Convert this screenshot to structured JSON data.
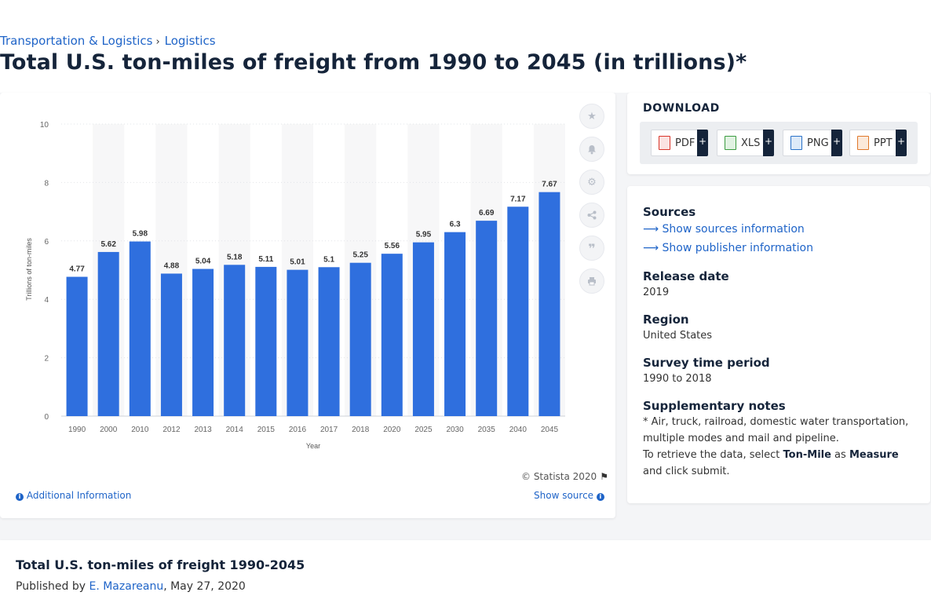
{
  "breadcrumb": {
    "items": [
      "Transportation & Logistics",
      "Logistics"
    ],
    "separator": "›"
  },
  "page_title": "Total U.S. ton-miles of freight from 1990 to 2045 (in trillions)*",
  "chart_tools": {
    "icons": [
      "star-icon",
      "bell-icon",
      "gear-icon",
      "share-icon",
      "quote-icon",
      "print-icon"
    ]
  },
  "chart_footer": {
    "copyright": "© Statista 2020",
    "additional_info": "Additional Information",
    "show_source": "Show source"
  },
  "download": {
    "title": "DOWNLOAD",
    "buttons": [
      {
        "label": "PDF",
        "color": "#d9352a"
      },
      {
        "label": "XLS",
        "color": "#3a9b3f"
      },
      {
        "label": "PNG",
        "color": "#2a72c8"
      },
      {
        "label": "PPT",
        "color": "#e0782a"
      }
    ]
  },
  "info": {
    "sources_heading": "Sources",
    "show_sources": "Show sources information",
    "show_publisher": "Show publisher information",
    "release_date_heading": "Release date",
    "release_date": "2019",
    "region_heading": "Region",
    "region": "United States",
    "survey_heading": "Survey time period",
    "survey_period": "1990 to 2018",
    "notes_heading": "Supplementary notes",
    "notes_line1": "* Air, truck, railroad, domestic water transportation, multiple modes and mail and pipeline.",
    "notes_line2_pre": "To retrieve the data, select ",
    "notes_bold1": "Ton-Mile",
    "notes_mid": " as ",
    "notes_bold2": "Measure",
    "notes_post": " and click submit."
  },
  "bottom": {
    "title": "Total U.S. ton-miles of freight 1990-2045",
    "published_prefix": "Published by ",
    "author": "E. Mazareanu",
    "date": ", May 27, 2020"
  },
  "colors": {
    "bar": "#2f6fde",
    "brand_dark": "#15243a",
    "link": "#1f64c8"
  },
  "chart_data": {
    "type": "bar",
    "categories": [
      "1990",
      "2000",
      "2010",
      "2012",
      "2013",
      "2014",
      "2015",
      "2016",
      "2017",
      "2018",
      "2020",
      "2025",
      "2030",
      "2035",
      "2040",
      "2045"
    ],
    "values": [
      4.77,
      5.62,
      5.98,
      4.88,
      5.04,
      5.18,
      5.11,
      5.01,
      5.1,
      5.25,
      5.56,
      5.95,
      6.3,
      6.69,
      7.17,
      7.67
    ],
    "value_labels": [
      "4.77",
      "5.62",
      "5.98",
      "4.88",
      "5.04",
      "5.18",
      "5.11",
      "5.01",
      "5.1",
      "5.25",
      "5.56",
      "5.95",
      "6.3",
      "6.69",
      "7.17",
      "7.67"
    ],
    "yticks": [
      "0",
      "2",
      "4",
      "6",
      "8",
      "10"
    ],
    "ylim": [
      0,
      10
    ],
    "xlabel": "Year",
    "ylabel": "Trillions of ton-miles",
    "grid": true
  }
}
